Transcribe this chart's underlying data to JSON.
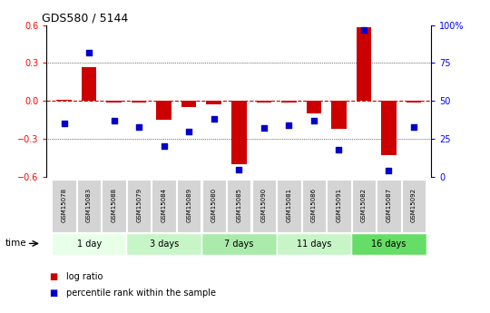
{
  "title": "GDS580 / 5144",
  "samples": [
    "GSM15078",
    "GSM15083",
    "GSM15088",
    "GSM15079",
    "GSM15084",
    "GSM15089",
    "GSM15080",
    "GSM15085",
    "GSM15090",
    "GSM15081",
    "GSM15086",
    "GSM15091",
    "GSM15082",
    "GSM15087",
    "GSM15092"
  ],
  "log_ratio": [
    0.01,
    0.27,
    -0.01,
    -0.01,
    -0.15,
    -0.05,
    -0.03,
    -0.5,
    -0.01,
    -0.01,
    -0.1,
    -0.22,
    0.58,
    -0.43,
    -0.01
  ],
  "percentile_rank": [
    35,
    82,
    37,
    33,
    20,
    30,
    38,
    5,
    32,
    34,
    37,
    18,
    97,
    4,
    33
  ],
  "groups": [
    {
      "label": "1 day",
      "start": 0,
      "end": 3,
      "color": "#e8ffe8"
    },
    {
      "label": "3 days",
      "start": 3,
      "end": 6,
      "color": "#c8f5c8"
    },
    {
      "label": "7 days",
      "start": 6,
      "end": 9,
      "color": "#aaeaaa"
    },
    {
      "label": "11 days",
      "start": 9,
      "end": 12,
      "color": "#c8f5c8"
    },
    {
      "label": "16 days",
      "start": 12,
      "end": 15,
      "color": "#66dd66"
    }
  ],
  "ylim_left": [
    -0.6,
    0.6
  ],
  "ylim_right": [
    0,
    100
  ],
  "yticks_left": [
    -0.6,
    -0.3,
    0.0,
    0.3,
    0.6
  ],
  "yticks_right": [
    0,
    25,
    50,
    75,
    100
  ],
  "yticklabels_right": [
    "0",
    "25",
    "50",
    "75",
    "100%"
  ],
  "bar_color": "#cc0000",
  "dot_color": "#0000cc",
  "zero_line_color": "#cc0000",
  "grid_color": "#000000",
  "bg_color": "#ffffff",
  "sample_bg": "#cccccc",
  "legend_bar_label": "log ratio",
  "legend_dot_label": "percentile rank within the sample",
  "time_label": "time"
}
